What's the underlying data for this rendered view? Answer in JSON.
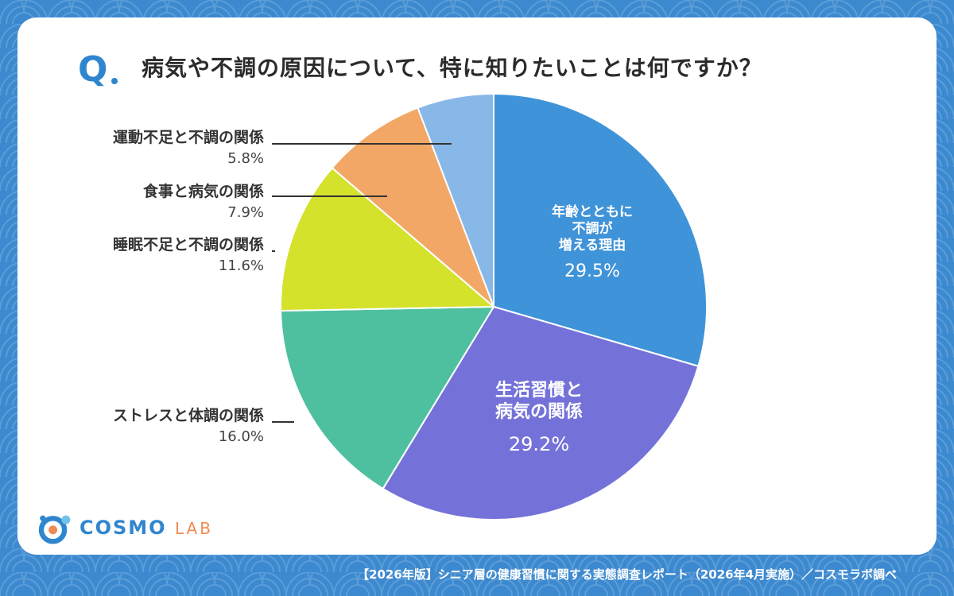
{
  "header": {
    "q_mark": "Q",
    "question": "病気や不調の原因について、特に知りたいことは何ですか？"
  },
  "chart_data": {
    "type": "pie",
    "start": "12 o'clock, clockwise",
    "slices": [
      {
        "label": "年齢とともに不調が増える理由",
        "label_lines": [
          "年齢とともに",
          "不調が",
          "増える理由"
        ],
        "value": 29.5,
        "value_text": "29.5%",
        "color": "#3f93d8",
        "label_position": "inside"
      },
      {
        "label": "生活習慣と病気の関係",
        "label_lines": [
          "生活習慣と",
          "病気の関係"
        ],
        "value": 29.2,
        "value_text": "29.2%",
        "color": "#7472d8",
        "label_position": "inside"
      },
      {
        "label": "ストレスと体調の関係",
        "value": 16.0,
        "value_text": "16.0%",
        "color": "#4ec0a0",
        "label_position": "outside"
      },
      {
        "label": "睡眠不足と不調の関係",
        "value": 11.6,
        "value_text": "11.6%",
        "color": "#d4e22c",
        "label_position": "outside"
      },
      {
        "label": "食事と病気の関係",
        "value": 7.9,
        "value_text": "7.9%",
        "color": "#f2a766",
        "label_position": "outside"
      },
      {
        "label": "運動不足と不調の関係",
        "value": 5.8,
        "value_text": "5.8%",
        "color": "#88b8e8",
        "label_position": "outside"
      }
    ]
  },
  "logo": {
    "name": "COSMO",
    "suffix": "LAB"
  },
  "footer": {
    "credit": "【2026年版】シニア層の健康習慣に関する実態調査レポート（2026年4月実施）／コスモラボ調べ"
  },
  "colors": {
    "background": "#3d89cf",
    "accent": "#2f86cf",
    "logo_secondary": "#ef8a52"
  }
}
